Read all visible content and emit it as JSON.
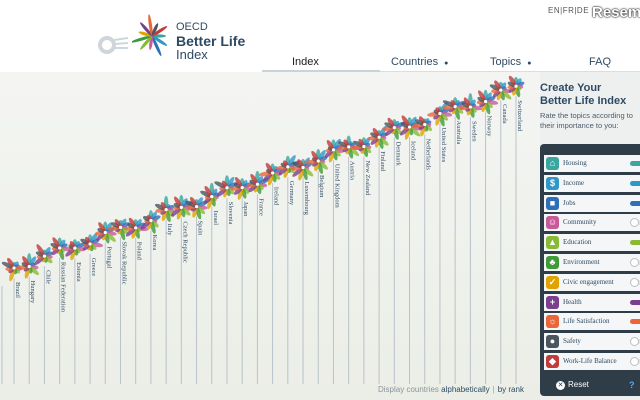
{
  "logo": {
    "org": "OECD",
    "line1": "Better Life",
    "line2": "Index"
  },
  "language": "EN|FR|DE",
  "watermark": "Resem",
  "nav": [
    {
      "label": "Index",
      "active": true,
      "dot": false
    },
    {
      "label": "Countries",
      "active": false,
      "dot": true
    },
    {
      "label": "Topics",
      "active": false,
      "dot": true
    },
    {
      "label": "FAQ",
      "active": false,
      "dot": false
    }
  ],
  "side": {
    "title_line1": "Create Your",
    "title_line2": "Better Life Index",
    "subtitle": "Rate the topics according to their importance to you:"
  },
  "topics": [
    {
      "label": "Housing",
      "icon": "house-icon",
      "glyph": "⌂",
      "color": "#3aa6a0",
      "level": 1.0
    },
    {
      "label": "Income",
      "icon": "coins-icon",
      "glyph": "$",
      "color": "#2f98c9",
      "level": 1.0
    },
    {
      "label": "Jobs",
      "icon": "briefcase-icon",
      "glyph": "■",
      "color": "#2f6fb5",
      "level": 1.0
    },
    {
      "label": "Community",
      "icon": "people-icon",
      "glyph": "☺",
      "color": "#c85a9a",
      "level": 0.0
    },
    {
      "label": "Education",
      "icon": "graduation-icon",
      "glyph": "▲",
      "color": "#88bb33",
      "level": 1.0
    },
    {
      "label": "Environment",
      "icon": "leaf-icon",
      "glyph": "♣",
      "color": "#3f9b3a",
      "level": 0.0
    },
    {
      "label": "Civic engagement",
      "icon": "ballot-icon",
      "glyph": "✓",
      "color": "#e0a300",
      "level": 0.0
    },
    {
      "label": "Health",
      "icon": "cross-icon",
      "glyph": "+",
      "color": "#7a3f8e",
      "level": 1.0
    },
    {
      "label": "Life Satisfaction",
      "icon": "smile-icon",
      "glyph": "☼",
      "color": "#e8663a",
      "level": 1.0
    },
    {
      "label": "Safety",
      "icon": "shield-icon",
      "glyph": "●",
      "color": "#4a5560",
      "level": 0.0
    },
    {
      "label": "Work-Life Balance",
      "icon": "scale-icon",
      "glyph": "◆",
      "color": "#c23a3a",
      "level": 0.0
    }
  ],
  "reset_label": "Reset",
  "help_label": "?",
  "display": {
    "prefix": "Display countries",
    "alpha": "alphabetically",
    "sep": "|",
    "rank": "by rank"
  },
  "petal_colors": [
    "#3aa6a0",
    "#2f98c9",
    "#2f6fb5",
    "#c85a9a",
    "#88bb33",
    "#3f9b3a",
    "#e0a300",
    "#7a3f8e",
    "#e8663a",
    "#4a5560",
    "#c23a3a"
  ],
  "countries": [
    "Brazil",
    "Hungary",
    "Chile",
    "Russian Federation",
    "Estonia",
    "Greece",
    "Portugal",
    "Slovak Republic",
    "Poland",
    "Korea",
    "Italy",
    "Czech Republic",
    "Spain",
    "Israel",
    "Slovenia",
    "Japan",
    "France",
    "Ireland",
    "Germany",
    "Luxembourg",
    "Belgium",
    "United Kingdom",
    "Austria",
    "New Zealand",
    "Finland",
    "Denmark",
    "Iceland",
    "Netherlands",
    "United States",
    "Australia",
    "Sweden",
    "Norway",
    "Canada",
    "Switzerland"
  ]
}
